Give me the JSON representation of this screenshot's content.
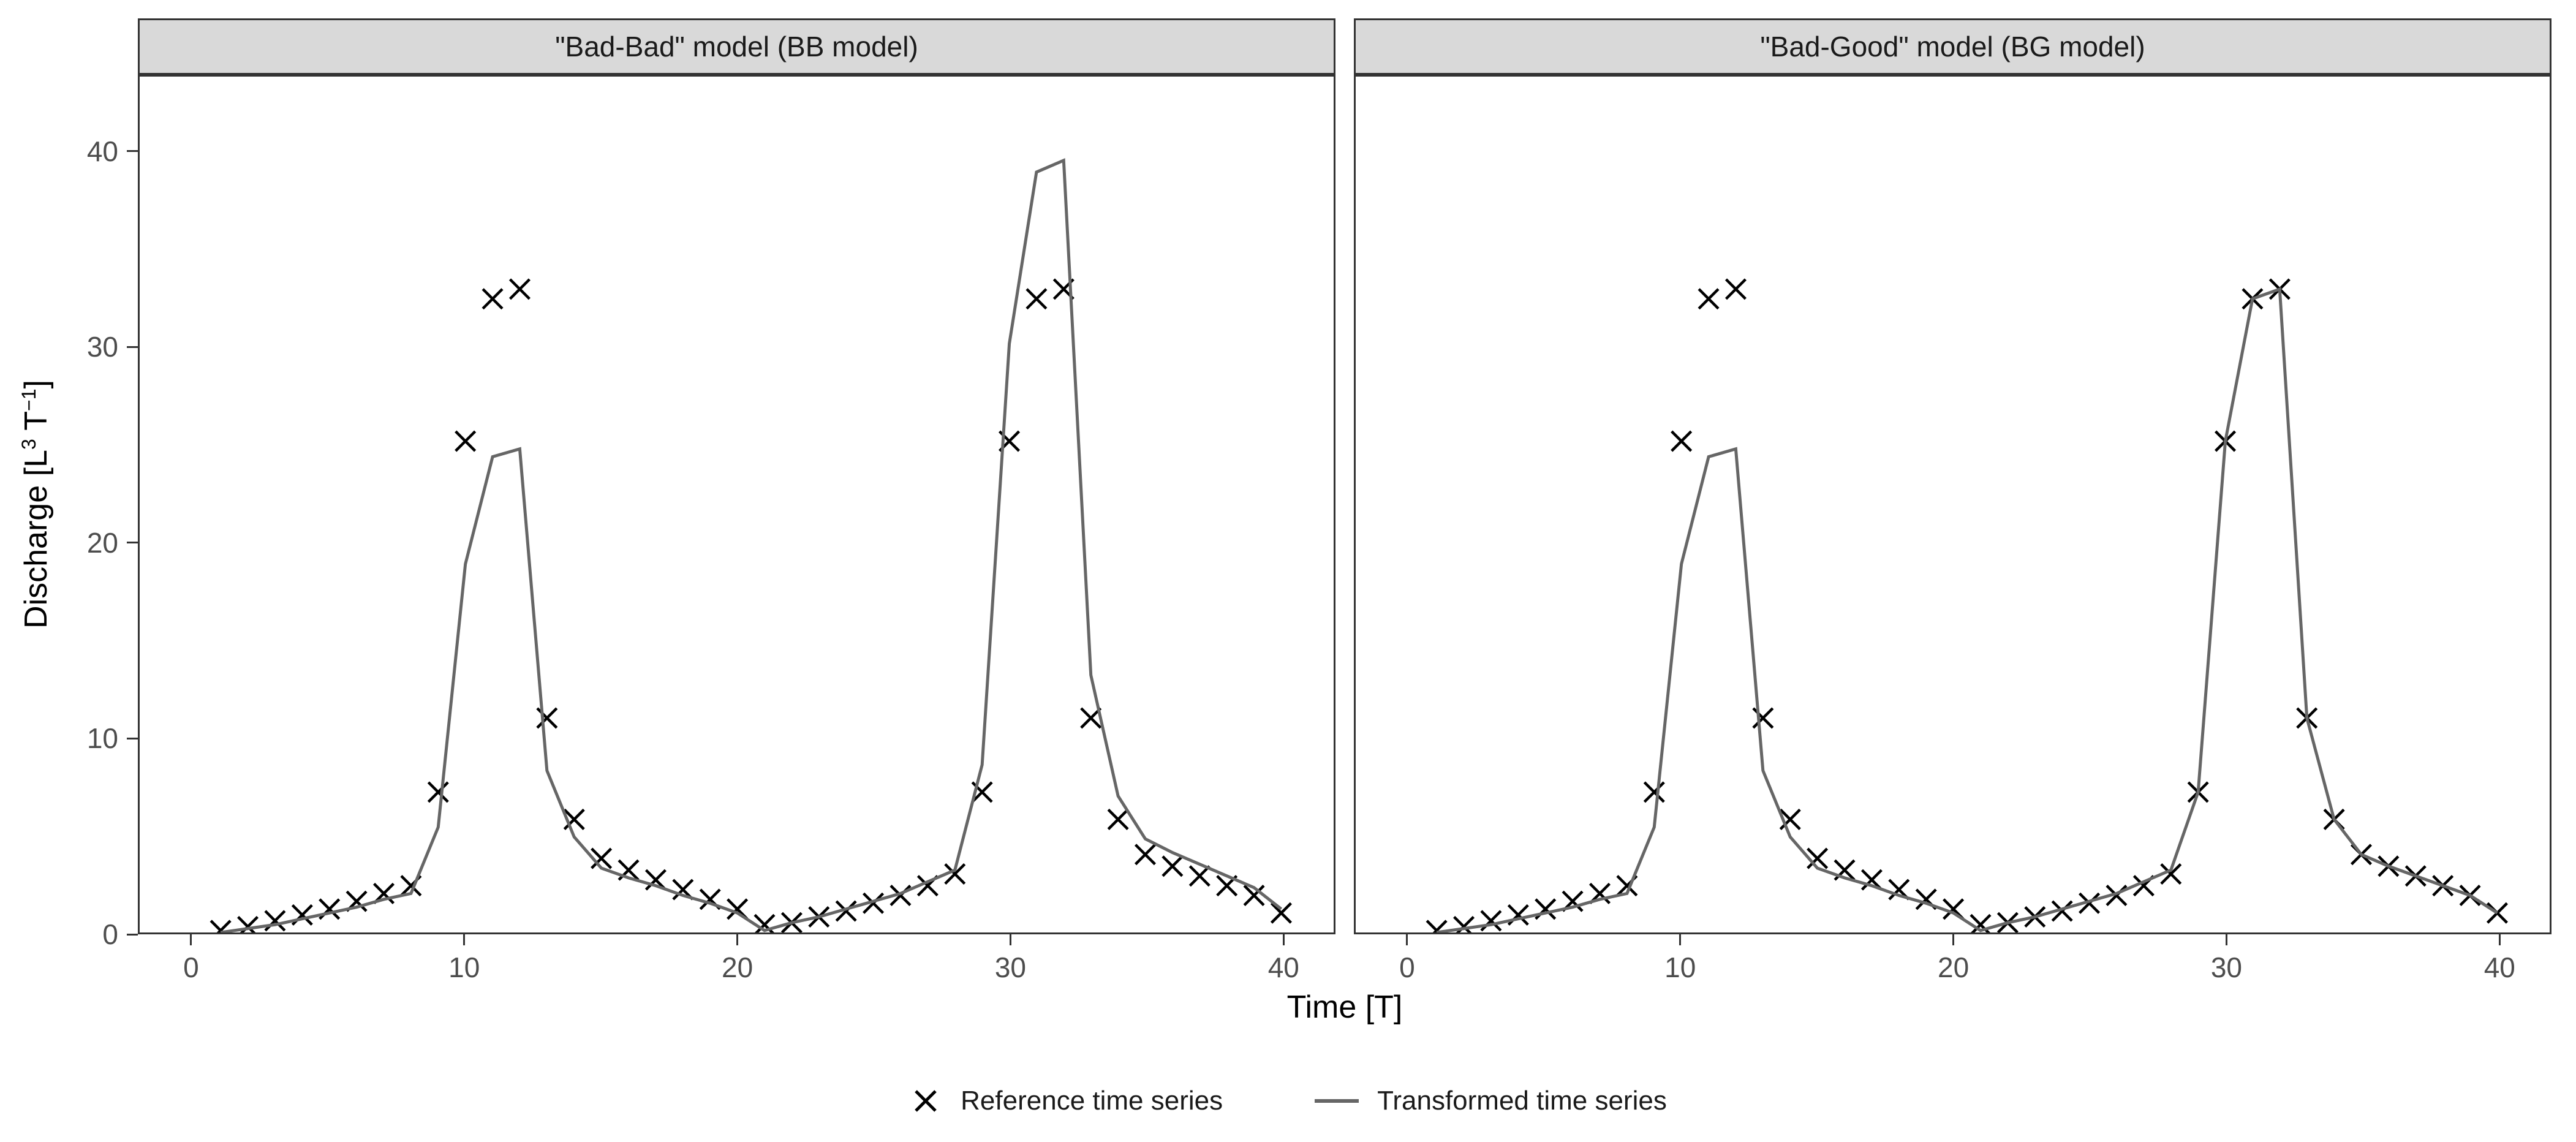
{
  "figure": {
    "y_axis_title_parts": {
      "b1": "Discharge [L",
      "e1": "3",
      "b2": " T",
      "e2": "−1",
      "b3": "]"
    }
  },
  "chart_data": {
    "type": "line",
    "title": "",
    "xlabel": "Time [T]",
    "ylabel": "Discharge [L³ T⁻¹]",
    "grid": false,
    "legend_position": "bottom",
    "x_ticks": [
      0,
      10,
      20,
      30,
      40
    ],
    "y_ticks": [
      0,
      10,
      20,
      30,
      40
    ],
    "x_range": [
      -1.95,
      41.9
    ],
    "y_range": [
      0,
      43.9
    ],
    "x": [
      1,
      2,
      3,
      4,
      5,
      6,
      7,
      8,
      9,
      10,
      11,
      12,
      13,
      14,
      15,
      16,
      17,
      18,
      19,
      20,
      21,
      22,
      23,
      24,
      25,
      26,
      27,
      28,
      29,
      30,
      31,
      32,
      33,
      34,
      35,
      36,
      37,
      38,
      39,
      40
    ],
    "colors": {
      "reference_marker": "#000000",
      "transformed_line": "#666666",
      "panel_border": "#333333",
      "strip_background": "#d9d9d9",
      "tick_label": "#4d4d4d"
    },
    "panels": [
      {
        "title": "\"Bad-Bad\" model (BB model)",
        "series": [
          {
            "name": "Reference time series",
            "type": "scatter",
            "marker": "x",
            "color": "#000000",
            "values": [
              0.1,
              0.3,
              0.6,
              0.9,
              1.2,
              1.6,
              2.0,
              2.4,
              7.2,
              25.2,
              32.5,
              33.0,
              11.0,
              5.8,
              3.8,
              3.2,
              2.7,
              2.2,
              1.7,
              1.2,
              0.4,
              0.5,
              0.8,
              1.1,
              1.5,
              1.9,
              2.4,
              3.0,
              7.2,
              25.2,
              32.5,
              33.0,
              11.0,
              5.8,
              4.0,
              3.4,
              2.9,
              2.4,
              1.9,
              1.0
            ]
          },
          {
            "name": "Transformed time series",
            "type": "line",
            "color": "#666666",
            "values": [
              0.0,
              0.2,
              0.4,
              0.7,
              1.0,
              1.3,
              1.7,
              2.0,
              5.4,
              18.9,
              24.4,
              24.8,
              8.3,
              4.9,
              3.3,
              2.8,
              2.4,
              1.9,
              1.5,
              1.0,
              0.1,
              0.5,
              0.8,
              1.2,
              1.6,
              2.0,
              2.6,
              3.2,
              8.6,
              30.2,
              39.0,
              39.6,
              13.2,
              7.0,
              4.8,
              4.1,
              3.5,
              2.9,
              2.3,
              1.2
            ]
          }
        ]
      },
      {
        "title": "\"Bad-Good\" model (BG model)",
        "series": [
          {
            "name": "Reference time series",
            "type": "scatter",
            "marker": "x",
            "color": "#000000",
            "values": [
              0.1,
              0.3,
              0.6,
              0.9,
              1.2,
              1.6,
              2.0,
              2.4,
              7.2,
              25.2,
              32.5,
              33.0,
              11.0,
              5.8,
              3.8,
              3.2,
              2.7,
              2.2,
              1.7,
              1.2,
              0.4,
              0.5,
              0.8,
              1.1,
              1.5,
              1.9,
              2.4,
              3.0,
              7.2,
              25.2,
              32.5,
              33.0,
              11.0,
              5.8,
              4.0,
              3.4,
              2.9,
              2.4,
              1.9,
              1.0
            ]
          },
          {
            "name": "Transformed time series",
            "type": "line",
            "color": "#666666",
            "values": [
              0.0,
              0.2,
              0.4,
              0.7,
              1.0,
              1.3,
              1.7,
              2.0,
              5.4,
              18.9,
              24.4,
              24.8,
              8.3,
              4.9,
              3.3,
              2.8,
              2.4,
              1.9,
              1.5,
              1.0,
              0.1,
              0.5,
              0.8,
              1.2,
              1.6,
              2.0,
              2.6,
              3.2,
              7.2,
              25.2,
              32.5,
              33.0,
              11.0,
              5.8,
              4.0,
              3.4,
              2.9,
              2.4,
              1.9,
              1.0
            ]
          }
        ]
      }
    ]
  }
}
